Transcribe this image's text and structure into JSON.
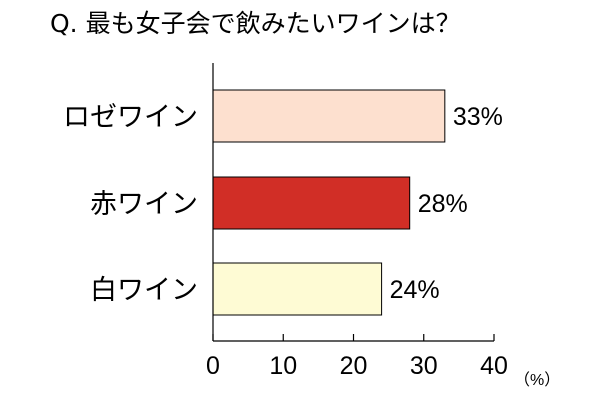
{
  "chart_data": {
    "type": "bar",
    "orientation": "horizontal",
    "title": "Q. 最も女子会で飲みたいワインは？",
    "categories": [
      "ロゼワイン",
      "赤ワイン",
      "白ワイン"
    ],
    "values": [
      33,
      28,
      24
    ],
    "value_labels": [
      "33%",
      "28%",
      "24%"
    ],
    "bar_colors": [
      "#fde0cf",
      "#d12e26",
      "#fefbd4"
    ],
    "xlim": [
      0,
      40
    ],
    "x_ticks": [
      0,
      10,
      20,
      30,
      40
    ],
    "x_tick_labels": [
      "0",
      "10",
      "20",
      "30",
      "40"
    ],
    "xlabel": "（%）",
    "ylabel": "",
    "grid": false,
    "legend": "none"
  }
}
